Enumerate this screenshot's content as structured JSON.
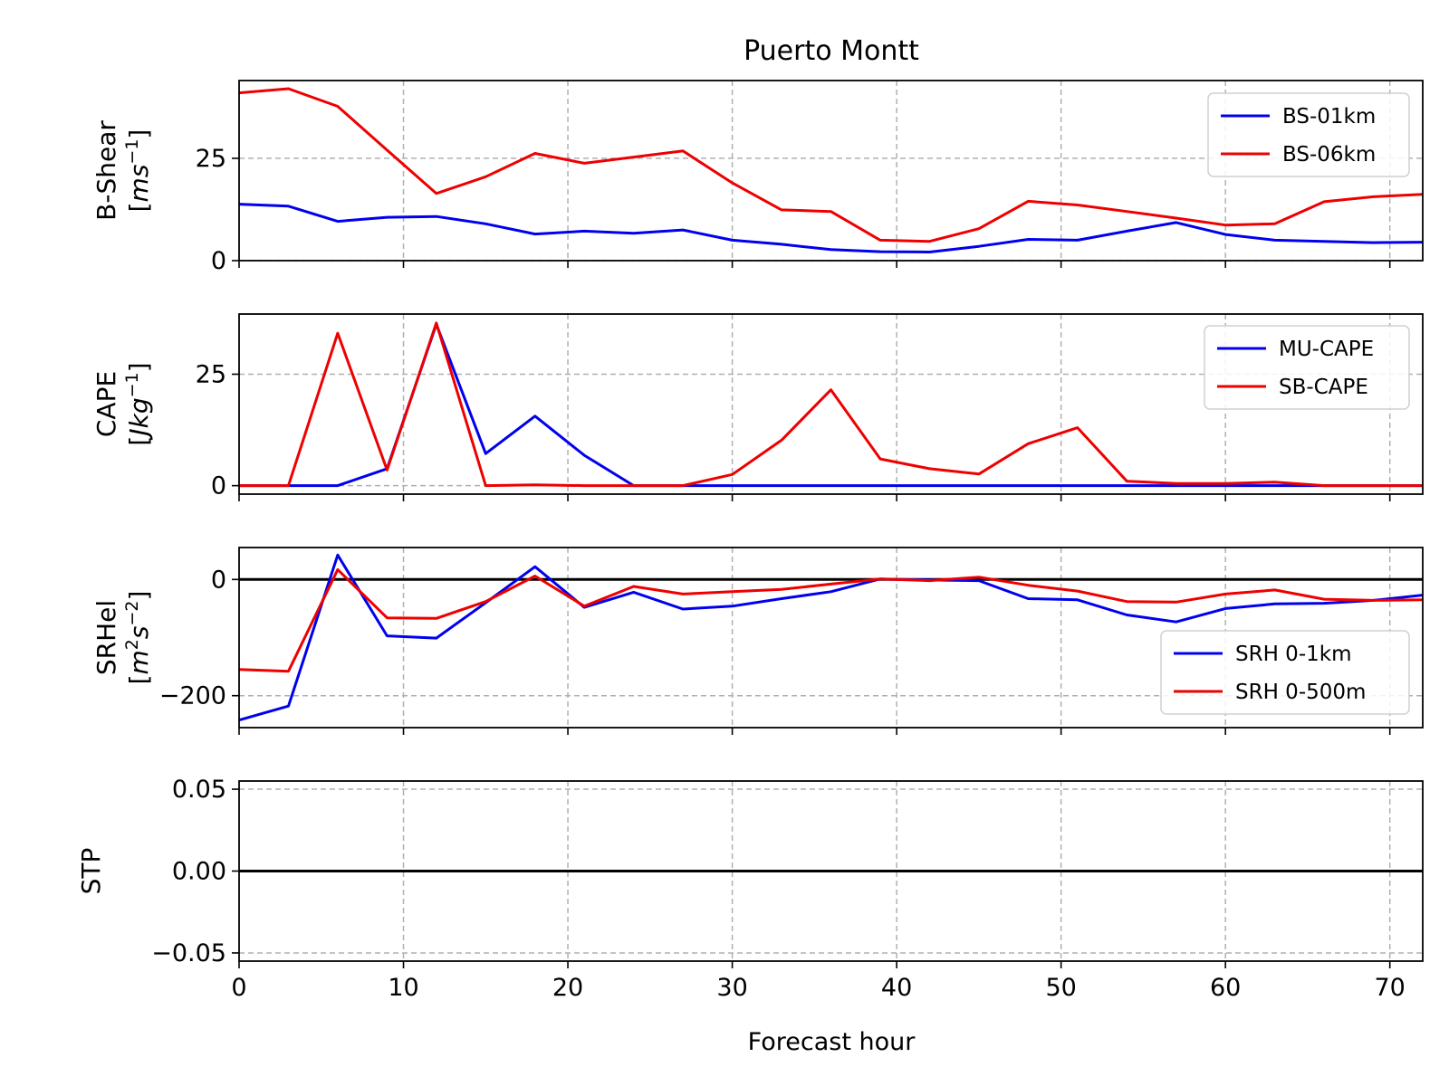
{
  "figure": {
    "title": "Puerto Montt",
    "xlabel": "Forecast hour"
  },
  "chart_data": [
    {
      "type": "line",
      "panel": "bshear",
      "ylabel_main": "B-Shear",
      "ylabel_unit_prefix": "[",
      "ylabel_unit_base": "ms",
      "ylabel_unit_sup": "−1",
      "ylabel_unit_suffix": "]",
      "ylim": [
        0,
        44
      ],
      "yticks": [
        0,
        25
      ],
      "ytick_labels": [
        "0",
        "25"
      ],
      "xlim": [
        0,
        72
      ],
      "grid": true,
      "legend_position": "top-right",
      "x": [
        0,
        3,
        6,
        9,
        12,
        15,
        18,
        21,
        24,
        27,
        30,
        33,
        36,
        39,
        42,
        45,
        48,
        51,
        54,
        57,
        60,
        63,
        66,
        69,
        72
      ],
      "series": [
        {
          "name": "BS-01km",
          "color": "#0000ee",
          "values": [
            13.8,
            13.3,
            9.6,
            10.6,
            10.8,
            9.0,
            6.5,
            7.2,
            6.7,
            7.5,
            5.0,
            4.0,
            2.7,
            2.2,
            2.1,
            3.5,
            5.2,
            5.0,
            7.2,
            9.3,
            6.4,
            5.0,
            4.7,
            4.4,
            4.5
          ]
        },
        {
          "name": "BS-06km",
          "color": "#ee0000",
          "values": [
            41.0,
            42.0,
            37.7,
            27.0,
            16.4,
            20.5,
            26.2,
            23.8,
            25.3,
            26.8,
            19.0,
            12.4,
            12.0,
            5.0,
            4.7,
            7.8,
            14.5,
            13.6,
            12.0,
            10.4,
            8.7,
            9.0,
            14.4,
            15.6,
            16.2
          ]
        }
      ]
    },
    {
      "type": "line",
      "panel": "cape",
      "ylabel_main": "CAPE",
      "ylabel_unit_prefix": "[",
      "ylabel_unit_base": "Jkg",
      "ylabel_unit_sup": "−1",
      "ylabel_unit_suffix": "]",
      "ylim": [
        -1.9,
        38.5
      ],
      "yticks": [
        0,
        25
      ],
      "ytick_labels": [
        "0",
        "25"
      ],
      "xlim": [
        0,
        72
      ],
      "grid": true,
      "legend_position": "top-right",
      "x": [
        0,
        3,
        6,
        9,
        12,
        15,
        18,
        21,
        24,
        27,
        30,
        33,
        36,
        39,
        42,
        45,
        48,
        51,
        54,
        57,
        60,
        63,
        66,
        69,
        72
      ],
      "series": [
        {
          "name": "MU-CAPE",
          "color": "#0000ee",
          "values": [
            0,
            0,
            0,
            3.8,
            36.2,
            7.2,
            15.6,
            6.8,
            0,
            0,
            0,
            0,
            0,
            0,
            0,
            0,
            0,
            0,
            0,
            0,
            0,
            0,
            0,
            0,
            0
          ]
        },
        {
          "name": "SB-CAPE",
          "color": "#ee0000",
          "values": [
            0,
            0,
            34.2,
            3.5,
            36.5,
            0,
            0.2,
            0,
            0,
            0,
            2.5,
            10.2,
            21.5,
            6.0,
            3.8,
            2.6,
            9.4,
            13.0,
            1.0,
            0.5,
            0.5,
            0.8,
            0,
            0,
            0
          ]
        }
      ]
    },
    {
      "type": "line",
      "panel": "srhel",
      "ylabel_main": "SRHel",
      "ylabel_unit_prefix": "[",
      "ylabel_unit_base": "m",
      "ylabel_unit_sup": "2",
      "ylabel_unit_base2": "s",
      "ylabel_unit_sup2": "−2",
      "ylabel_unit_suffix": "]",
      "ylim": [
        -255,
        55
      ],
      "yticks": [
        0,
        -200
      ],
      "ytick_labels": [
        "0",
        "−200"
      ],
      "xlim": [
        0,
        72
      ],
      "grid": true,
      "zero_line": true,
      "legend_position": "lower-right",
      "x": [
        0,
        3,
        6,
        9,
        12,
        15,
        18,
        21,
        24,
        27,
        30,
        33,
        36,
        39,
        42,
        45,
        48,
        51,
        54,
        57,
        60,
        63,
        66,
        69,
        72
      ],
      "series": [
        {
          "name": "SRH 0-1km",
          "color": "#0000ee",
          "values": [
            -242,
            -218,
            42,
            -97,
            -101,
            -40,
            22,
            -48,
            -22,
            -51,
            -46,
            -33,
            -21,
            1,
            -1,
            -2,
            -33,
            -35,
            -61,
            -73,
            -50,
            -42,
            -41,
            -36,
            -27
          ]
        },
        {
          "name": "SRH 0-500m",
          "color": "#ee0000",
          "values": [
            -155,
            -158,
            17,
            -66,
            -67,
            -38,
            6,
            -46,
            -12,
            -25,
            -21,
            -17,
            -8,
            1,
            -2,
            4,
            -10,
            -20,
            -38,
            -39,
            -25,
            -18,
            -34,
            -36,
            -35
          ]
        }
      ]
    },
    {
      "type": "line",
      "panel": "stp",
      "ylabel_main": "STP",
      "ylim": [
        -0.055,
        0.055
      ],
      "yticks": [
        0.05,
        0.0,
        -0.05
      ],
      "ytick_labels": [
        "0.05",
        "0.00",
        "−0.05"
      ],
      "xlim": [
        0,
        72
      ],
      "xticks": [
        0,
        10,
        20,
        30,
        40,
        50,
        60,
        70
      ],
      "xtick_labels": [
        "0",
        "10",
        "20",
        "30",
        "40",
        "50",
        "60",
        "70"
      ],
      "grid": true,
      "zero_line": true
    }
  ]
}
